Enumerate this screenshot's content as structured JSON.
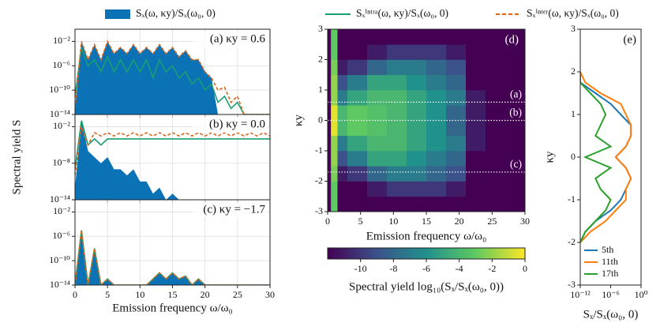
{
  "chart_data": [
    {
      "type": "line",
      "log": true,
      "ylabel": "Spectral yield S",
      "annotation": "(a) κy = 0.6",
      "x": [
        0,
        1,
        2,
        3,
        4,
        5,
        6,
        7,
        8,
        9,
        10,
        11,
        12,
        13,
        14,
        15,
        16,
        17,
        18,
        19,
        20,
        21,
        22,
        23,
        24,
        25,
        26,
        27,
        28,
        29,
        30
      ],
      "series": [
        {
          "name": "Sₓ(ω, κy)/Sₓ(ω₀, 0)",
          "color": "#0a72b5",
          "style": "area",
          "values": [
            1e-13,
            0.01,
            1e-05,
            0.003,
            1e-05,
            0.01,
            0.0001,
            0.001,
            0.0001,
            0.003,
            0.0001,
            0.001,
            0.0001,
            0.003,
            0.0001,
            0.001,
            3e-05,
            0.0003,
            1e-05,
            1e-05,
            1e-07,
            1e-08,
            1e-14,
            1e-14,
            1e-14,
            1e-14,
            1e-14,
            1e-14,
            1e-14,
            1e-14,
            1e-14
          ]
        },
        {
          "name": "Sₓⁱⁿᵗʳᵃ(ω, κy)/Sₓ(ω₀, 0)",
          "color": "#1a9e73",
          "style": "line",
          "values": [
            1e-11,
            0.001,
            1e-06,
            1e-05,
            1e-07,
            3e-05,
            1e-07,
            1e-05,
            1e-07,
            1e-05,
            1e-07,
            1e-05,
            1e-08,
            1e-05,
            1e-07,
            1e-06,
            1e-08,
            1e-07,
            1e-09,
            1e-08,
            1e-10,
            1e-09,
            1e-12,
            1e-11,
            1e-13,
            1e-12,
            1e-14,
            1e-14,
            1e-14,
            1e-14,
            1e-14
          ]
        },
        {
          "name": "Sₓⁱⁿᵗᵉʳ(ω, κy)/Sₓ(ω₀, 0)",
          "color": "#d9661f",
          "style": "dashed",
          "values": [
            1e-13,
            0.01,
            1e-05,
            0.003,
            1e-05,
            0.01,
            0.0001,
            0.001,
            0.0001,
            0.003,
            0.0001,
            0.001,
            0.0001,
            0.003,
            0.0001,
            0.001,
            3e-05,
            0.0003,
            1e-05,
            1e-05,
            1e-07,
            1e-08,
            1e-10,
            3e-10,
            1e-12,
            1e-11,
            1e-14,
            1e-14,
            1e-14,
            1e-14,
            1e-14
          ]
        }
      ],
      "xlim": [
        0,
        30
      ],
      "xticks": [
        0,
        5,
        10,
        15,
        20,
        25,
        30
      ],
      "show_xtick_labels": false,
      "ylim": [
        1e-14,
        1
      ],
      "yticks": [
        {
          "value": 0.01,
          "label": "10⁻²"
        },
        {
          "value": 1e-06,
          "label": "10⁻⁶"
        },
        {
          "value": 1e-10,
          "label": "10⁻¹⁰"
        },
        {
          "value": 1e-14,
          "label": "10⁻¹⁴"
        }
      ],
      "grid": true
    },
    {
      "type": "line",
      "log": true,
      "annotation": "(b) κy = 0.0",
      "x": [
        0,
        1,
        2,
        3,
        4,
        5,
        6,
        7,
        8,
        9,
        10,
        11,
        12,
        13,
        14,
        15,
        16,
        17,
        18,
        19,
        20,
        21,
        22,
        23,
        24,
        25,
        26,
        27,
        28,
        29,
        30
      ],
      "series": [
        {
          "color": "#0a72b5",
          "style": "area",
          "values": [
            1e-12,
            0.1,
            1e-06,
            1e-07,
            1e-08,
            1e-07,
            1e-09,
            1e-09,
            1e-10,
            1e-09,
            1e-11,
            1e-11,
            1e-13,
            1e-12,
            1e-14,
            1e-13,
            1e-14,
            1e-14,
            1e-14,
            1e-14,
            1e-14,
            1e-14,
            1e-14,
            1e-14,
            1e-14,
            1e-14,
            1e-14,
            1e-14,
            1e-14,
            1e-14,
            1e-14
          ]
        },
        {
          "color": "#1a9e73",
          "style": "line",
          "values": [
            1e-09,
            0.1,
            1e-05,
            0.0001,
            1e-05,
            0.0001,
            0.0001,
            0.0001,
            0.0001,
            0.0001,
            0.0001,
            0.0001,
            0.0001,
            0.0001,
            0.0001,
            0.0001,
            0.0001,
            0.0001,
            0.0001,
            0.0001,
            0.0001,
            0.0001,
            0.0001,
            0.0001,
            0.0001,
            0.0001,
            0.0001,
            0.0001,
            0.0001,
            0.0001,
            0.0001
          ]
        },
        {
          "color": "#d9661f",
          "style": "dashed",
          "values": [
            1e-10,
            0.01,
            1e-05,
            0.001,
            0.0003,
            0.001,
            0.0003,
            0.001,
            0.0003,
            0.001,
            0.0003,
            0.001,
            0.0003,
            0.001,
            0.0003,
            0.001,
            0.0003,
            0.001,
            0.0003,
            0.001,
            0.0003,
            0.001,
            0.0003,
            0.001,
            0.0003,
            0.001,
            0.0003,
            0.001,
            0.0003,
            0.001,
            0.0003
          ]
        }
      ],
      "xlim": [
        0,
        30
      ],
      "xticks": [
        0,
        5,
        10,
        15,
        20,
        25,
        30
      ],
      "show_xtick_labels": false,
      "ylim": [
        1e-14,
        1
      ],
      "yticks": [
        {
          "value": 0.01,
          "label": "10⁻²"
        },
        {
          "value": 1e-08,
          "label": "10⁻⁸"
        },
        {
          "value": 1e-14,
          "label": "10⁻¹⁴"
        }
      ],
      "grid": true
    },
    {
      "type": "line",
      "log": true,
      "annotation": "(c) κy = −1.7",
      "xlabel": "Emission frequency ω/ω₀",
      "x": [
        0,
        1,
        2,
        3,
        4,
        5,
        6,
        7,
        8,
        9,
        10,
        11,
        12,
        13,
        14,
        15,
        16,
        17,
        18,
        19,
        20,
        21,
        22,
        23,
        24,
        25,
        26,
        27,
        28,
        29,
        30
      ],
      "series": [
        {
          "color": "#0a72b5",
          "style": "area",
          "values": [
            1e-14,
            1e-05,
            1e-14,
            1e-08,
            1e-14,
            1e-13,
            1e-14,
            1e-14,
            1e-14,
            1e-14,
            1e-14,
            1e-14,
            1e-13,
            1e-12,
            1e-13,
            1e-12,
            1e-13,
            3e-13,
            1e-14,
            1e-13,
            1e-14,
            1e-14,
            1e-14,
            1e-14,
            1e-14,
            1e-14,
            1e-14,
            1e-14,
            1e-14,
            1e-14,
            1e-14
          ]
        },
        {
          "color": "#1a9e73",
          "style": "line",
          "values": [
            1e-14,
            1e-05,
            1e-14,
            1e-08,
            1e-14,
            1e-13,
            1e-14,
            1e-14,
            1e-14,
            1e-14,
            1e-14,
            1e-14,
            1e-13,
            1e-12,
            1e-13,
            1e-12,
            1e-13,
            3e-13,
            1e-14,
            1e-13,
            1e-14,
            1e-14,
            1e-14,
            1e-14,
            1e-14,
            1e-14,
            1e-14,
            1e-14,
            1e-14,
            1e-14,
            1e-14
          ]
        },
        {
          "color": "#d9661f",
          "style": "dashed",
          "values": [
            1e-14,
            1e-05,
            1e-14,
            1e-08,
            1e-14,
            1e-13,
            1e-14,
            1e-14,
            1e-14,
            1e-14,
            1e-14,
            1e-14,
            1e-13,
            1e-12,
            1e-13,
            1e-12,
            1e-13,
            3e-13,
            1e-14,
            1e-13,
            1e-14,
            1e-14,
            1e-14,
            1e-14,
            1e-14,
            1e-14,
            1e-14,
            1e-14,
            1e-14,
            1e-14,
            1e-14
          ]
        }
      ],
      "xlim": [
        0,
        30
      ],
      "xticks": [
        0,
        5,
        10,
        15,
        20,
        25,
        30
      ],
      "show_xtick_labels": true,
      "ylim": [
        1e-14,
        1
      ],
      "yticks": [
        {
          "value": 0.01,
          "label": "10⁻²"
        },
        {
          "value": 1e-06,
          "label": "10⁻⁶"
        },
        {
          "value": 1e-10,
          "label": "10⁻¹⁰"
        },
        {
          "value": 1e-14,
          "label": "10⁻¹⁴"
        }
      ],
      "grid": true
    },
    {
      "type": "heatmap",
      "annotation": "(d)",
      "xlabel": "Emission frequency ω/ω₀",
      "ylabel": "κy",
      "xbins": [
        0,
        0.5,
        1.5,
        3,
        6,
        9,
        12,
        15,
        18,
        21,
        24,
        27,
        30
      ],
      "ybins": [
        -3,
        -2.5,
        -2,
        -1.5,
        -1,
        -0.5,
        0,
        0.5,
        1,
        1.5,
        2,
        2.5,
        3
      ],
      "z": [
        [
          -12,
          -3,
          -12,
          -12,
          -12,
          -12,
          -12,
          -12,
          -12,
          -12,
          -12,
          -12
        ],
        [
          -12,
          -3,
          -12,
          -12,
          -11,
          -10,
          -10,
          -10,
          -11,
          -12,
          -12,
          -12
        ],
        [
          -12,
          -2.5,
          -11,
          -10,
          -8,
          -7,
          -7,
          -8,
          -9,
          -12,
          -12,
          -12
        ],
        [
          -12,
          -2,
          -9,
          -7,
          -5,
          -5,
          -6,
          -7,
          -8,
          -12,
          -12,
          -12
        ],
        [
          -12,
          -2,
          -7,
          -5,
          -4,
          -4,
          -5,
          -6,
          -7,
          -11,
          -12,
          -12
        ],
        [
          -12,
          -0.5,
          -4,
          -3,
          -3.5,
          -4,
          -5,
          -6,
          -8,
          -11,
          -12,
          -12
        ],
        [
          -12,
          -0.5,
          -4,
          -3,
          -3.5,
          -4,
          -5,
          -6,
          -8,
          -11,
          -12,
          -12
        ],
        [
          -12,
          -2,
          -7,
          -5,
          -4,
          -4,
          -5,
          -6,
          -7,
          -11,
          -12,
          -12
        ],
        [
          -12,
          -2,
          -9,
          -7,
          -5,
          -5,
          -6,
          -7,
          -8,
          -12,
          -12,
          -12
        ],
        [
          -12,
          -2.5,
          -11,
          -10,
          -8,
          -7,
          -7,
          -8,
          -9,
          -12,
          -12,
          -12
        ],
        [
          -12,
          -3,
          -12,
          -12,
          -11,
          -10,
          -10,
          -10,
          -11,
          -12,
          -12,
          -12
        ],
        [
          -12,
          -3,
          -12,
          -12,
          -12,
          -12,
          -12,
          -12,
          -12,
          -12,
          -12,
          -12
        ]
      ],
      "zlim": [
        -12,
        0
      ],
      "colormap": [
        "#440154",
        "#3b528b",
        "#21918c",
        "#5ec962",
        "#fde725"
      ],
      "hlines": [
        {
          "value": 0.6,
          "label": "(a)"
        },
        {
          "value": 0,
          "label": "(b)"
        },
        {
          "value": -1.7,
          "label": "(c)"
        }
      ],
      "xlim": [
        0,
        30
      ],
      "xticks": [
        0,
        5,
        10,
        15,
        20,
        25,
        30
      ],
      "ylim": [
        -3,
        3
      ],
      "yticks": [
        -3,
        -2,
        -1,
        0,
        1,
        2,
        3
      ],
      "colorbar": {
        "ticks": [
          -10,
          -8,
          -6,
          -4,
          -2,
          0
        ],
        "label": "Spectral yield log₁₀(Sₓ/Sₓ(ω₀, 0))"
      }
    },
    {
      "type": "profile",
      "log": true,
      "annotation": "(e)",
      "xlabel": "Sₓ/Sₓ(ω₀, 0)",
      "ylabel": "κy",
      "legend": "lower left",
      "y": [
        -2,
        -1.75,
        -1.5,
        -1.25,
        -1,
        -0.75,
        -0.5,
        -0.25,
        0,
        0.25,
        0.5,
        0.75,
        1,
        1.25,
        1.5,
        1.75,
        2
      ],
      "series": [
        {
          "name": "5th",
          "color": "#1f77b4",
          "values": [
            1e-12,
            1e-11,
            1e-09,
            1e-06,
            0.0001,
            0.001,
            0.01,
            0.001,
            1e-05,
            0.001,
            0.01,
            0.01,
            0.0001,
            1e-06,
            1e-09,
            1e-12,
            1e-12
          ]
        },
        {
          "name": "11th",
          "color": "#ff7f0e",
          "values": [
            1e-12,
            1e-10,
            1e-07,
            1e-05,
            0.001,
            0.001,
            0.01,
            0.001,
            1e-05,
            0.001,
            0.01,
            0.01,
            0.001,
            0.0001,
            1e-08,
            1e-11,
            1e-12
          ]
        },
        {
          "name": "17th",
          "color": "#2ca02c",
          "values": [
            1e-12,
            1e-11,
            1e-09,
            1e-07,
            1e-06,
            1e-08,
            1e-09,
            1e-06,
            1e-11,
            1e-06,
            1e-09,
            1e-08,
            1e-07,
            1e-08,
            1e-10,
            1e-12,
            1e-12
          ]
        }
      ],
      "xlim": [
        1e-12,
        1
      ],
      "xticks": [
        {
          "value": 1e-12,
          "label": "10⁻¹²"
        },
        {
          "value": 1e-06,
          "label": "10⁻⁶"
        },
        {
          "value": 1,
          "label": "10⁰"
        }
      ],
      "ylim": [
        -3,
        3
      ],
      "yticks": [
        -3,
        -2,
        -1,
        0,
        1,
        2,
        3
      ]
    }
  ]
}
